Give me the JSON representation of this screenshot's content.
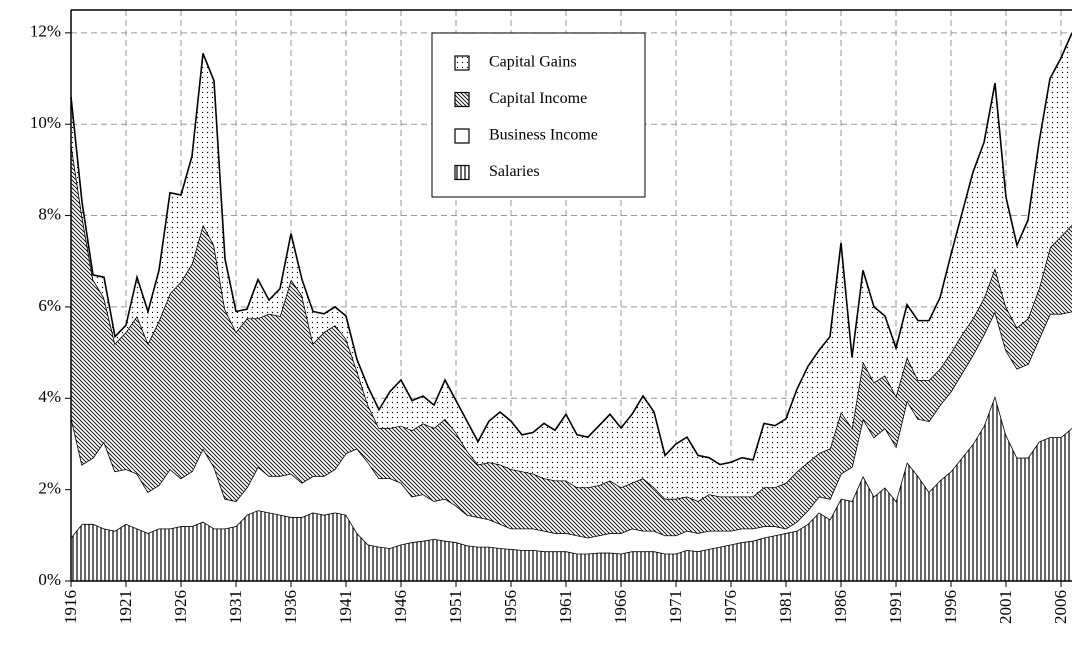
{
  "chart_data": {
    "type": "stacked-area",
    "x": [
      1916,
      1917,
      1918,
      1919,
      1920,
      1921,
      1922,
      1923,
      1924,
      1925,
      1926,
      1927,
      1928,
      1929,
      1930,
      1931,
      1932,
      1933,
      1934,
      1935,
      1936,
      1937,
      1938,
      1939,
      1940,
      1941,
      1942,
      1943,
      1944,
      1945,
      1946,
      1947,
      1948,
      1949,
      1950,
      1951,
      1952,
      1953,
      1954,
      1955,
      1956,
      1957,
      1958,
      1959,
      1960,
      1961,
      1962,
      1963,
      1964,
      1965,
      1966,
      1967,
      1968,
      1969,
      1970,
      1971,
      1972,
      1973,
      1974,
      1975,
      1976,
      1977,
      1978,
      1979,
      1980,
      1981,
      1982,
      1983,
      1984,
      1985,
      1986,
      1987,
      1988,
      1989,
      1990,
      1991,
      1992,
      1993,
      1994,
      1995,
      1996,
      1997,
      1998,
      1999,
      2000,
      2001,
      2002,
      2003,
      2004,
      2005,
      2006,
      2007
    ],
    "series": [
      {
        "name": "Salaries",
        "pattern": "vertical",
        "values": [
          0.95,
          1.25,
          1.25,
          1.15,
          1.1,
          1.25,
          1.15,
          1.05,
          1.15,
          1.15,
          1.2,
          1.2,
          1.3,
          1.15,
          1.15,
          1.2,
          1.45,
          1.55,
          1.5,
          1.45,
          1.4,
          1.4,
          1.5,
          1.45,
          1.5,
          1.45,
          1.05,
          0.8,
          0.75,
          0.72,
          0.8,
          0.85,
          0.88,
          0.92,
          0.88,
          0.85,
          0.78,
          0.75,
          0.75,
          0.72,
          0.7,
          0.68,
          0.68,
          0.65,
          0.65,
          0.65,
          0.6,
          0.6,
          0.62,
          0.62,
          0.6,
          0.65,
          0.65,
          0.65,
          0.6,
          0.6,
          0.68,
          0.65,
          0.7,
          0.75,
          0.8,
          0.85,
          0.88,
          0.95,
          1.0,
          1.05,
          1.1,
          1.25,
          1.5,
          1.35,
          1.8,
          1.75,
          2.3,
          1.85,
          2.05,
          1.75,
          2.6,
          2.3,
          1.95,
          2.2,
          2.4,
          2.7,
          3.0,
          3.4,
          4.05,
          3.2,
          2.7,
          2.7,
          3.05,
          3.15,
          3.15,
          3.35
        ]
      },
      {
        "name": "Business Income",
        "pattern": "none",
        "values": [
          2.65,
          1.3,
          1.45,
          1.9,
          1.3,
          1.2,
          1.2,
          0.9,
          0.95,
          1.3,
          1.05,
          1.2,
          1.6,
          1.35,
          0.65,
          0.55,
          0.6,
          0.95,
          0.8,
          0.85,
          0.95,
          0.75,
          0.8,
          0.85,
          0.95,
          1.35,
          1.85,
          1.8,
          1.5,
          1.53,
          1.35,
          1.0,
          1.02,
          0.83,
          0.92,
          0.8,
          0.67,
          0.65,
          0.6,
          0.53,
          0.45,
          0.47,
          0.47,
          0.45,
          0.4,
          0.4,
          0.4,
          0.35,
          0.38,
          0.43,
          0.45,
          0.5,
          0.45,
          0.45,
          0.4,
          0.4,
          0.42,
          0.4,
          0.4,
          0.35,
          0.3,
          0.3,
          0.27,
          0.25,
          0.2,
          0.1,
          0.2,
          0.3,
          0.35,
          0.45,
          0.55,
          0.75,
          1.25,
          1.3,
          1.3,
          1.2,
          1.35,
          1.25,
          1.55,
          1.65,
          1.75,
          1.85,
          1.95,
          2.0,
          1.85,
          1.85,
          1.95,
          2.05,
          2.25,
          2.7,
          2.7,
          2.55
        ]
      },
      {
        "name": "Capital Income",
        "pattern": "hatch",
        "values": [
          6.0,
          5.45,
          3.9,
          3.15,
          2.8,
          3.0,
          3.45,
          3.25,
          3.6,
          3.85,
          4.3,
          4.55,
          4.9,
          4.85,
          4.15,
          3.7,
          3.7,
          3.25,
          3.55,
          3.5,
          4.25,
          4.1,
          2.9,
          3.15,
          3.15,
          2.5,
          1.7,
          1.25,
          1.1,
          1.1,
          1.25,
          1.45,
          1.55,
          1.6,
          1.75,
          1.6,
          1.4,
          1.15,
          1.25,
          1.3,
          1.3,
          1.25,
          1.2,
          1.15,
          1.15,
          1.15,
          1.05,
          1.1,
          1.1,
          1.15,
          1.0,
          1.0,
          1.15,
          0.95,
          0.8,
          0.8,
          0.75,
          0.7,
          0.8,
          0.75,
          0.75,
          0.7,
          0.7,
          0.85,
          0.85,
          1.0,
          1.1,
          1.05,
          0.95,
          1.1,
          1.35,
          0.85,
          1.25,
          1.2,
          1.15,
          1.1,
          0.95,
          0.85,
          0.9,
          0.8,
          0.85,
          0.85,
          0.8,
          0.8,
          0.95,
          0.95,
          0.9,
          1.0,
          1.1,
          1.45,
          1.7,
          1.9
        ]
      },
      {
        "name": "Capital Gains",
        "pattern": "dots",
        "values": [
          1.0,
          0.3,
          0.1,
          0.45,
          0.15,
          0.15,
          0.85,
          0.7,
          1.1,
          2.2,
          1.9,
          2.35,
          3.75,
          3.6,
          1.1,
          0.45,
          0.2,
          0.85,
          0.3,
          0.6,
          1.0,
          0.35,
          0.7,
          0.4,
          0.4,
          0.5,
          0.25,
          0.4,
          0.4,
          0.8,
          1.0,
          0.65,
          0.6,
          0.5,
          0.85,
          0.7,
          0.65,
          0.5,
          0.9,
          1.15,
          1.05,
          0.8,
          0.9,
          1.2,
          1.1,
          1.45,
          1.15,
          1.1,
          1.3,
          1.45,
          1.3,
          1.5,
          1.8,
          1.65,
          0.95,
          1.2,
          1.3,
          1.0,
          0.8,
          0.7,
          0.75,
          0.85,
          0.8,
          1.4,
          1.35,
          1.4,
          1.8,
          2.1,
          2.25,
          2.45,
          3.7,
          1.55,
          2.0,
          1.65,
          1.3,
          1.05,
          1.15,
          1.3,
          1.3,
          1.55,
          2.15,
          2.65,
          3.2,
          3.4,
          4.05,
          2.4,
          1.8,
          2.15,
          3.2,
          3.7,
          3.9,
          4.2
        ]
      }
    ],
    "xlim": [
      1916,
      2007
    ],
    "xticks": [
      1916,
      1921,
      1926,
      1931,
      1936,
      1941,
      1946,
      1951,
      1956,
      1961,
      1966,
      1971,
      1976,
      1981,
      1986,
      1991,
      1996,
      2001,
      2006
    ],
    "ylim": [
      0,
      12.5
    ],
    "yticks": [
      {
        "value": 0,
        "label": "0%"
      },
      {
        "value": 2,
        "label": "2%"
      },
      {
        "value": 4,
        "label": "4%"
      },
      {
        "value": 6,
        "label": "6%"
      },
      {
        "value": 8,
        "label": "8%"
      },
      {
        "value": 10,
        "label": "10%"
      },
      {
        "value": 12,
        "label": "12%"
      }
    ],
    "grid": true,
    "legend": "upper center"
  }
}
